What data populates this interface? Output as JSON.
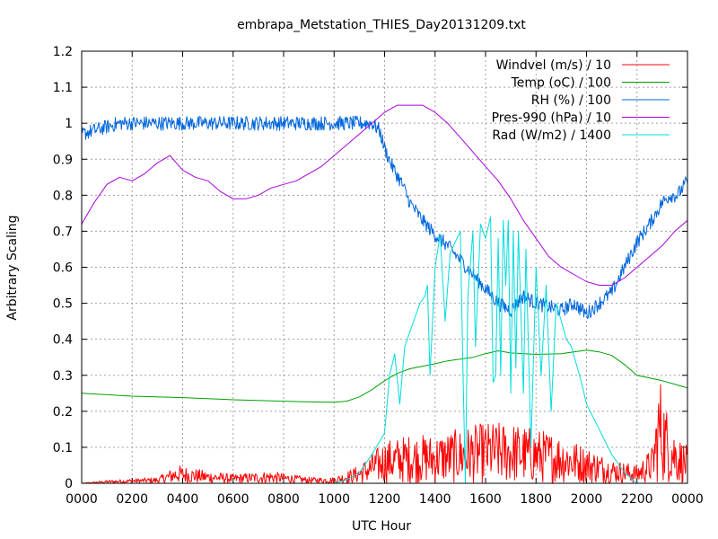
{
  "chart_data": {
    "type": "line",
    "title": "embrapa_Metstation_THIES_Day20131209.txt",
    "xlabel": "UTC Hour",
    "ylabel": "Arbitrary Scaling",
    "xlim": [
      0,
      2400
    ],
    "ylim": [
      0,
      1.2
    ],
    "x_ticks": [
      "0000",
      "0200",
      "0400",
      "0600",
      "0800",
      "1000",
      "1200",
      "1400",
      "1600",
      "1800",
      "2000",
      "2200",
      "0000"
    ],
    "y_ticks": [
      "0",
      "0.1",
      "0.2",
      "0.3",
      "0.4",
      "0.5",
      "0.6",
      "0.7",
      "0.8",
      "0.9",
      "1",
      "1.1",
      "1.2"
    ],
    "grid": true,
    "legend_position": "top-right",
    "series": [
      {
        "name": "Windvel (m/s) / 10",
        "color": "#ff0000",
        "noisy": true,
        "points": [
          [
            0,
            0.0
          ],
          [
            100,
            0.005
          ],
          [
            300,
            0.01
          ],
          [
            380,
            0.03
          ],
          [
            500,
            0.02
          ],
          [
            600,
            0.015
          ],
          [
            750,
            0.02
          ],
          [
            900,
            0.01
          ],
          [
            1000,
            0.01
          ],
          [
            1100,
            0.03
          ],
          [
            1200,
            0.07
          ],
          [
            1300,
            0.08
          ],
          [
            1400,
            0.08
          ],
          [
            1500,
            0.09
          ],
          [
            1600,
            0.1
          ],
          [
            1700,
            0.1
          ],
          [
            1800,
            0.09
          ],
          [
            1900,
            0.08
          ],
          [
            2000,
            0.06
          ],
          [
            2100,
            0.04
          ],
          [
            2200,
            0.03
          ],
          [
            2260,
            0.06
          ],
          [
            2290,
            0.18
          ],
          [
            2320,
            0.12
          ],
          [
            2360,
            0.08
          ],
          [
            2400,
            0.06
          ]
        ]
      },
      {
        "name": "Temp (oC) / 100",
        "color": "#00a000",
        "noisy": false,
        "points": [
          [
            0,
            0.25
          ],
          [
            200,
            0.242
          ],
          [
            400,
            0.238
          ],
          [
            600,
            0.232
          ],
          [
            800,
            0.228
          ],
          [
            900,
            0.226
          ],
          [
            1000,
            0.225
          ],
          [
            1050,
            0.228
          ],
          [
            1100,
            0.24
          ],
          [
            1150,
            0.26
          ],
          [
            1200,
            0.285
          ],
          [
            1250,
            0.305
          ],
          [
            1300,
            0.318
          ],
          [
            1350,
            0.325
          ],
          [
            1400,
            0.332
          ],
          [
            1450,
            0.34
          ],
          [
            1500,
            0.345
          ],
          [
            1550,
            0.35
          ],
          [
            1600,
            0.36
          ],
          [
            1650,
            0.368
          ],
          [
            1700,
            0.362
          ],
          [
            1800,
            0.358
          ],
          [
            1900,
            0.36
          ],
          [
            1950,
            0.365
          ],
          [
            2000,
            0.37
          ],
          [
            2050,
            0.365
          ],
          [
            2100,
            0.355
          ],
          [
            2150,
            0.33
          ],
          [
            2200,
            0.3
          ],
          [
            2300,
            0.285
          ],
          [
            2400,
            0.265
          ]
        ]
      },
      {
        "name": "RH (%) / 100",
        "color": "#0066dd",
        "noisy": true,
        "points": [
          [
            0,
            0.97
          ],
          [
            100,
            0.99
          ],
          [
            150,
            1.0
          ],
          [
            200,
            1.0
          ],
          [
            1100,
            1.0
          ],
          [
            1150,
            1.0
          ],
          [
            1180,
            0.98
          ],
          [
            1200,
            0.93
          ],
          [
            1230,
            0.88
          ],
          [
            1270,
            0.83
          ],
          [
            1300,
            0.78
          ],
          [
            1350,
            0.73
          ],
          [
            1400,
            0.69
          ],
          [
            1450,
            0.66
          ],
          [
            1500,
            0.62
          ],
          [
            1550,
            0.58
          ],
          [
            1600,
            0.54
          ],
          [
            1650,
            0.5
          ],
          [
            1700,
            0.48
          ],
          [
            1750,
            0.52
          ],
          [
            1800,
            0.5
          ],
          [
            1850,
            0.49
          ],
          [
            1900,
            0.48
          ],
          [
            1950,
            0.5
          ],
          [
            2000,
            0.47
          ],
          [
            2050,
            0.5
          ],
          [
            2100,
            0.53
          ],
          [
            2150,
            0.6
          ],
          [
            2200,
            0.67
          ],
          [
            2250,
            0.72
          ],
          [
            2300,
            0.78
          ],
          [
            2330,
            0.8
          ],
          [
            2360,
            0.8
          ],
          [
            2400,
            0.84
          ]
        ]
      },
      {
        "name": "Pres-990 (hPa) / 10",
        "color": "#aa00dd",
        "noisy": false,
        "points": [
          [
            0,
            0.72
          ],
          [
            50,
            0.78
          ],
          [
            100,
            0.83
          ],
          [
            150,
            0.85
          ],
          [
            200,
            0.84
          ],
          [
            250,
            0.86
          ],
          [
            300,
            0.89
          ],
          [
            350,
            0.91
          ],
          [
            400,
            0.87
          ],
          [
            450,
            0.85
          ],
          [
            500,
            0.84
          ],
          [
            550,
            0.81
          ],
          [
            600,
            0.79
          ],
          [
            650,
            0.79
          ],
          [
            700,
            0.8
          ],
          [
            750,
            0.82
          ],
          [
            800,
            0.83
          ],
          [
            850,
            0.84
          ],
          [
            900,
            0.86
          ],
          [
            950,
            0.88
          ],
          [
            1000,
            0.91
          ],
          [
            1050,
            0.94
          ],
          [
            1100,
            0.97
          ],
          [
            1150,
            1.0
          ],
          [
            1200,
            1.03
          ],
          [
            1250,
            1.05
          ],
          [
            1300,
            1.05
          ],
          [
            1350,
            1.05
          ],
          [
            1400,
            1.03
          ],
          [
            1450,
            1.0
          ],
          [
            1500,
            0.96
          ],
          [
            1550,
            0.92
          ],
          [
            1600,
            0.88
          ],
          [
            1650,
            0.84
          ],
          [
            1700,
            0.79
          ],
          [
            1750,
            0.73
          ],
          [
            1800,
            0.68
          ],
          [
            1850,
            0.63
          ],
          [
            1900,
            0.6
          ],
          [
            1950,
            0.58
          ],
          [
            2000,
            0.56
          ],
          [
            2050,
            0.55
          ],
          [
            2100,
            0.55
          ],
          [
            2150,
            0.57
          ],
          [
            2200,
            0.6
          ],
          [
            2250,
            0.63
          ],
          [
            2300,
            0.66
          ],
          [
            2350,
            0.7
          ],
          [
            2400,
            0.73
          ]
        ]
      },
      {
        "name": "Rad (W/m2) / 1400",
        "color": "#00dddd",
        "noisy": false,
        "points": [
          [
            0,
            0.0
          ],
          [
            1000,
            0.0
          ],
          [
            1050,
            0.01
          ],
          [
            1100,
            0.03
          ],
          [
            1150,
            0.08
          ],
          [
            1200,
            0.14
          ],
          [
            1220,
            0.3
          ],
          [
            1240,
            0.36
          ],
          [
            1260,
            0.22
          ],
          [
            1280,
            0.38
          ],
          [
            1300,
            0.42
          ],
          [
            1320,
            0.46
          ],
          [
            1340,
            0.5
          ],
          [
            1360,
            0.52
          ],
          [
            1370,
            0.55
          ],
          [
            1380,
            0.3
          ],
          [
            1400,
            0.6
          ],
          [
            1420,
            0.69
          ],
          [
            1440,
            0.45
          ],
          [
            1460,
            0.64
          ],
          [
            1480,
            0.67
          ],
          [
            1500,
            0.7
          ],
          [
            1510,
            0.33
          ],
          [
            1520,
            0.0
          ],
          [
            1530,
            0.52
          ],
          [
            1550,
            0.7
          ],
          [
            1560,
            0.38
          ],
          [
            1580,
            0.72
          ],
          [
            1600,
            0.68
          ],
          [
            1620,
            0.74
          ],
          [
            1630,
            0.28
          ],
          [
            1640,
            0.3
          ],
          [
            1650,
            0.68
          ],
          [
            1660,
            0.3
          ],
          [
            1670,
            0.73
          ],
          [
            1680,
            0.55
          ],
          [
            1690,
            0.73
          ],
          [
            1700,
            0.25
          ],
          [
            1710,
            0.7
          ],
          [
            1720,
            0.32
          ],
          [
            1730,
            0.7
          ],
          [
            1750,
            0.25
          ],
          [
            1760,
            0.65
          ],
          [
            1780,
            0.1
          ],
          [
            1800,
            0.6
          ],
          [
            1820,
            0.3
          ],
          [
            1840,
            0.55
          ],
          [
            1860,
            0.2
          ],
          [
            1880,
            0.5
          ],
          [
            1900,
            0.45
          ],
          [
            1920,
            0.4
          ],
          [
            1940,
            0.38
          ],
          [
            1960,
            0.33
          ],
          [
            1980,
            0.28
          ],
          [
            2000,
            0.22
          ],
          [
            2050,
            0.15
          ],
          [
            2100,
            0.08
          ],
          [
            2150,
            0.03
          ],
          [
            2200,
            0.0
          ],
          [
            2400,
            0.0
          ]
        ]
      }
    ]
  }
}
